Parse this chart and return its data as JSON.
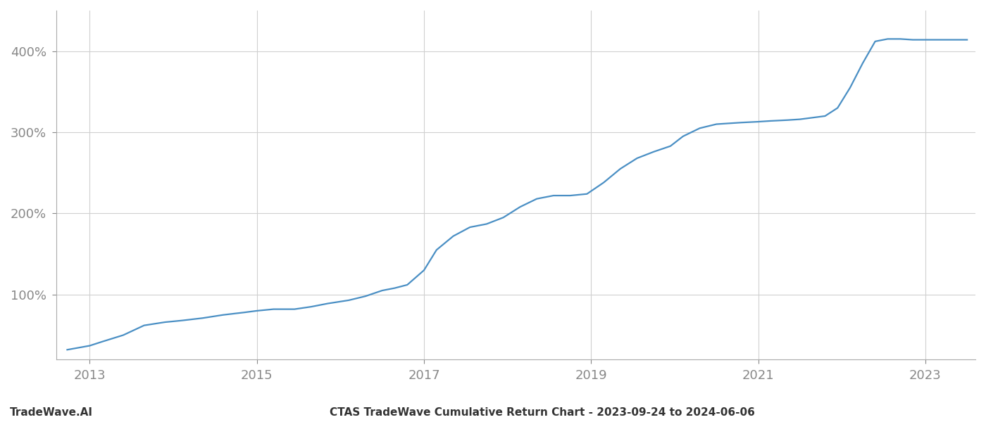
{
  "title": "CTAS TradeWave Cumulative Return Chart - 2023-09-24 to 2024-06-06",
  "watermark": "TradeWave.AI",
  "line_color": "#4a8fc4",
  "background_color": "#ffffff",
  "grid_color": "#d0d0d0",
  "x_years": [
    2013,
    2015,
    2017,
    2019,
    2021,
    2023
  ],
  "yticks": [
    100,
    200,
    300,
    400
  ],
  "xlim": [
    2012.6,
    2023.6
  ],
  "ylim": [
    20,
    450
  ],
  "data_points": [
    [
      2012.73,
      32
    ],
    [
      2013.0,
      37
    ],
    [
      2013.15,
      42
    ],
    [
      2013.4,
      50
    ],
    [
      2013.65,
      62
    ],
    [
      2013.9,
      66
    ],
    [
      2014.1,
      68
    ],
    [
      2014.35,
      71
    ],
    [
      2014.6,
      75
    ],
    [
      2014.85,
      78
    ],
    [
      2015.0,
      80
    ],
    [
      2015.2,
      82
    ],
    [
      2015.45,
      82
    ],
    [
      2015.65,
      85
    ],
    [
      2015.85,
      89
    ],
    [
      2016.1,
      93
    ],
    [
      2016.3,
      98
    ],
    [
      2016.5,
      105
    ],
    [
      2016.65,
      108
    ],
    [
      2016.8,
      112
    ],
    [
      2017.0,
      130
    ],
    [
      2017.15,
      155
    ],
    [
      2017.35,
      172
    ],
    [
      2017.55,
      183
    ],
    [
      2017.75,
      187
    ],
    [
      2017.95,
      195
    ],
    [
      2018.15,
      208
    ],
    [
      2018.35,
      218
    ],
    [
      2018.55,
      222
    ],
    [
      2018.75,
      222
    ],
    [
      2018.95,
      224
    ],
    [
      2019.15,
      238
    ],
    [
      2019.35,
      255
    ],
    [
      2019.55,
      268
    ],
    [
      2019.75,
      276
    ],
    [
      2019.95,
      283
    ],
    [
      2020.1,
      295
    ],
    [
      2020.3,
      305
    ],
    [
      2020.5,
      310
    ],
    [
      2020.65,
      311
    ],
    [
      2020.8,
      312
    ],
    [
      2021.0,
      313
    ],
    [
      2021.15,
      314
    ],
    [
      2021.35,
      315
    ],
    [
      2021.5,
      316
    ],
    [
      2021.65,
      318
    ],
    [
      2021.8,
      320
    ],
    [
      2021.95,
      330
    ],
    [
      2022.1,
      355
    ],
    [
      2022.25,
      385
    ],
    [
      2022.4,
      412
    ],
    [
      2022.55,
      415
    ],
    [
      2022.7,
      415
    ],
    [
      2022.85,
      414
    ],
    [
      2023.0,
      414
    ],
    [
      2023.15,
      414
    ],
    [
      2023.35,
      414
    ],
    [
      2023.5,
      414
    ]
  ],
  "title_fontsize": 11,
  "watermark_fontsize": 11,
  "tick_fontsize": 13,
  "line_width": 1.6
}
